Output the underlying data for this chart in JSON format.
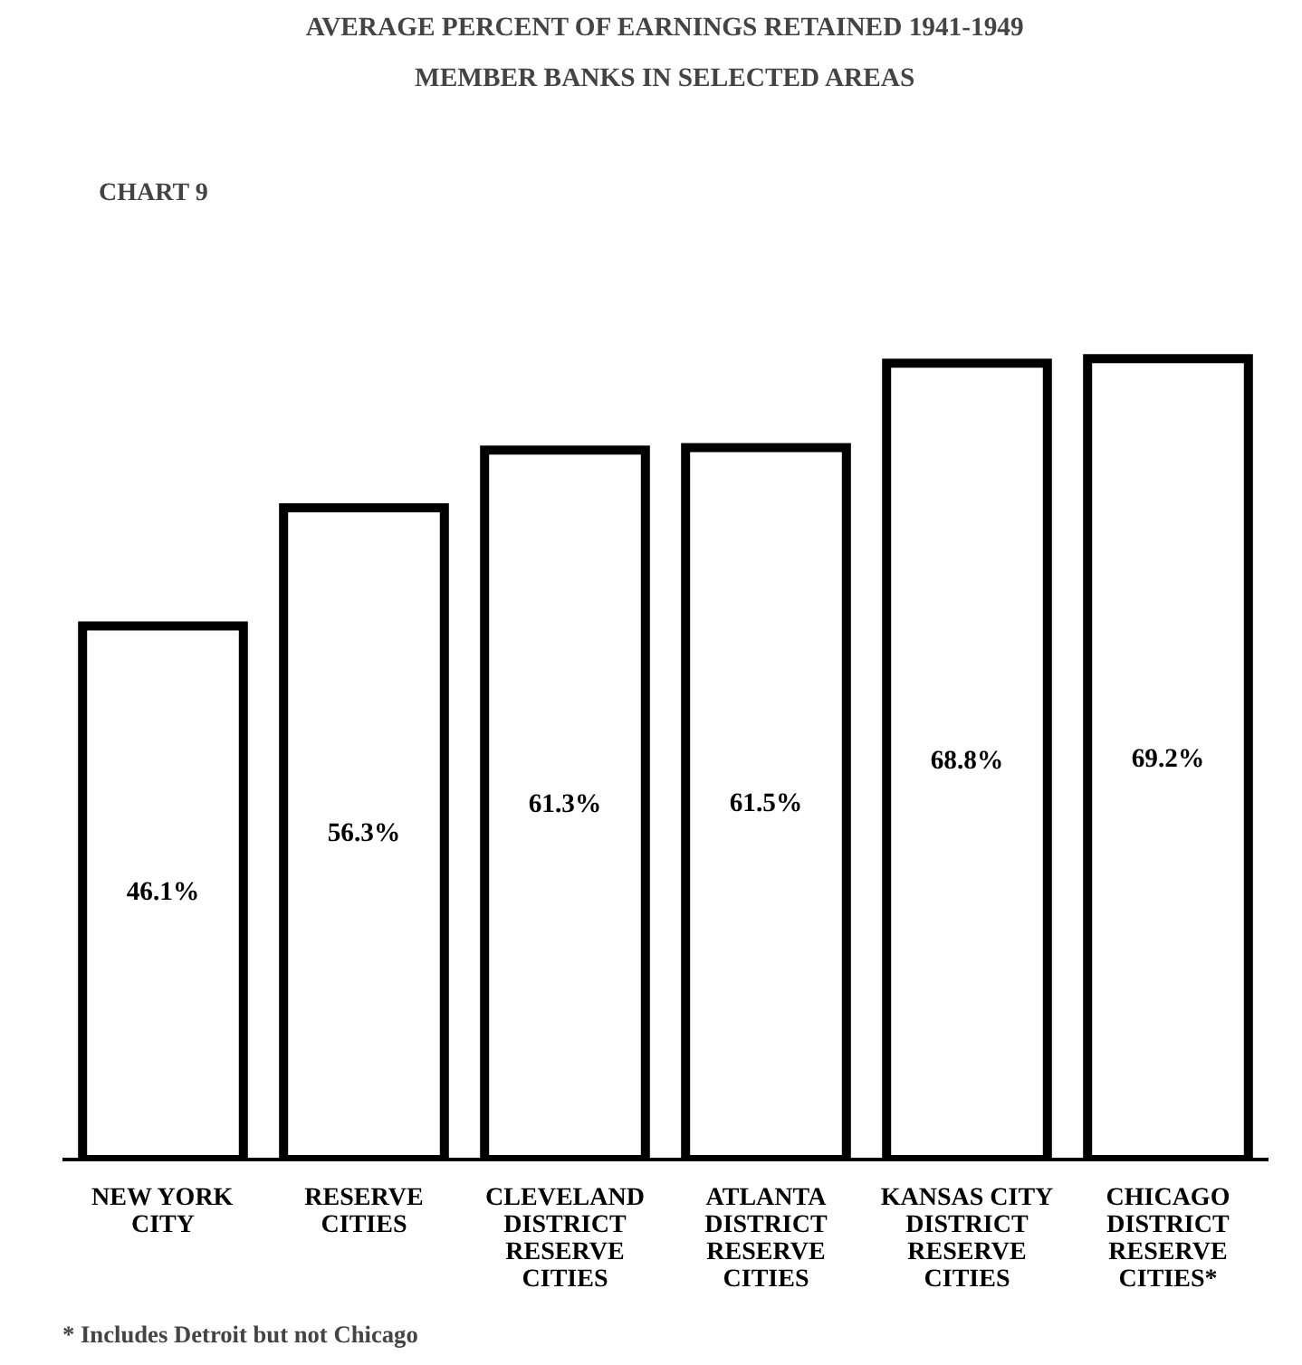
{
  "chart_data": {
    "type": "bar",
    "title": "AVERAGE PERCENT OF EARNINGS RETAINED 1941-1949",
    "subtitle": "MEMBER BANKS IN SELECTED AREAS",
    "categories": [
      "NEW YORK\nCITY",
      "RESERVE\nCITIES",
      "CLEVELAND\nDISTRICT\nRESERVE\nCITIES",
      "ATLANTA\nDISTRICT\nRESERVE\nCITIES",
      "KANSAS CITY\nDISTRICT\nRESERVE\nCITIES",
      "CHICAGO\nDISTRICT\nRESERVE\nCITIES*"
    ],
    "values": [
      46.1,
      56.3,
      61.3,
      61.5,
      68.8,
      69.2
    ],
    "value_labels": [
      "46.1%",
      "56.3%",
      "61.3%",
      "61.5%",
      "68.8%",
      "69.2%"
    ],
    "color": "#ffffff",
    "annotations": [
      "CHART 9",
      "* Includes Detroit but not Chicago"
    ],
    "grid": false
  }
}
